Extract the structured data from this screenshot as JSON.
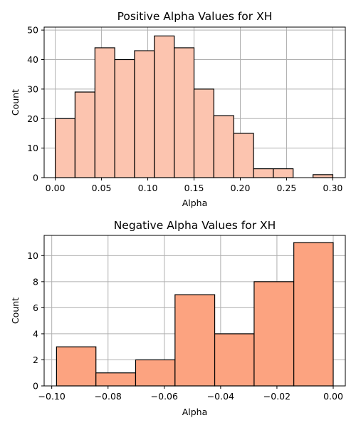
{
  "chart_data": [
    {
      "type": "bar",
      "title": "Positive Alpha Values for XH",
      "xlabel": "Alpha",
      "ylabel": "Count",
      "xlim": [
        -0.012,
        0.3135
      ],
      "ylim": [
        0,
        51
      ],
      "xticks": [
        "0.00",
        "0.05",
        "0.10",
        "0.15",
        "0.20",
        "0.25",
        "0.30"
      ],
      "xtick_values": [
        0.0,
        0.05,
        0.1,
        0.15,
        0.2,
        0.25,
        0.3
      ],
      "yticks": [
        "0",
        "10",
        "20",
        "30",
        "40",
        "50"
      ],
      "ytick_values": [
        0,
        10,
        20,
        30,
        40,
        50
      ],
      "bin_edges": [
        0.0,
        0.0214,
        0.0429,
        0.0643,
        0.0857,
        0.1071,
        0.1286,
        0.15,
        0.1714,
        0.1929,
        0.2143,
        0.2357,
        0.2571,
        0.2786,
        0.3
      ],
      "values": [
        20,
        29,
        44,
        40,
        43,
        48,
        44,
        30,
        21,
        15,
        3,
        3,
        0,
        1
      ],
      "grid": true,
      "bar_color": "#fcc4af"
    },
    {
      "type": "bar",
      "title": "Negative Alpha Values for XH",
      "xlabel": "Alpha",
      "ylabel": "Count",
      "xlim": [
        -0.1027,
        0.0043
      ],
      "ylim": [
        0,
        11.55
      ],
      "xticks": [
        "−0.10",
        "−0.08",
        "−0.06",
        "−0.04",
        "−0.02",
        "0.00"
      ],
      "xtick_values": [
        -0.1,
        -0.08,
        -0.06,
        -0.04,
        -0.02,
        0.0
      ],
      "yticks": [
        "0",
        "2",
        "4",
        "6",
        "8",
        "10"
      ],
      "ytick_values": [
        0,
        2,
        4,
        6,
        8,
        10
      ],
      "bin_edges": [
        -0.0983,
        -0.0843,
        -0.0702,
        -0.0562,
        -0.0421,
        -0.0281,
        -0.014,
        0.0
      ],
      "values": [
        3,
        1,
        2,
        7,
        4,
        8,
        11
      ],
      "grid": true,
      "bar_color": "#fca380"
    }
  ]
}
